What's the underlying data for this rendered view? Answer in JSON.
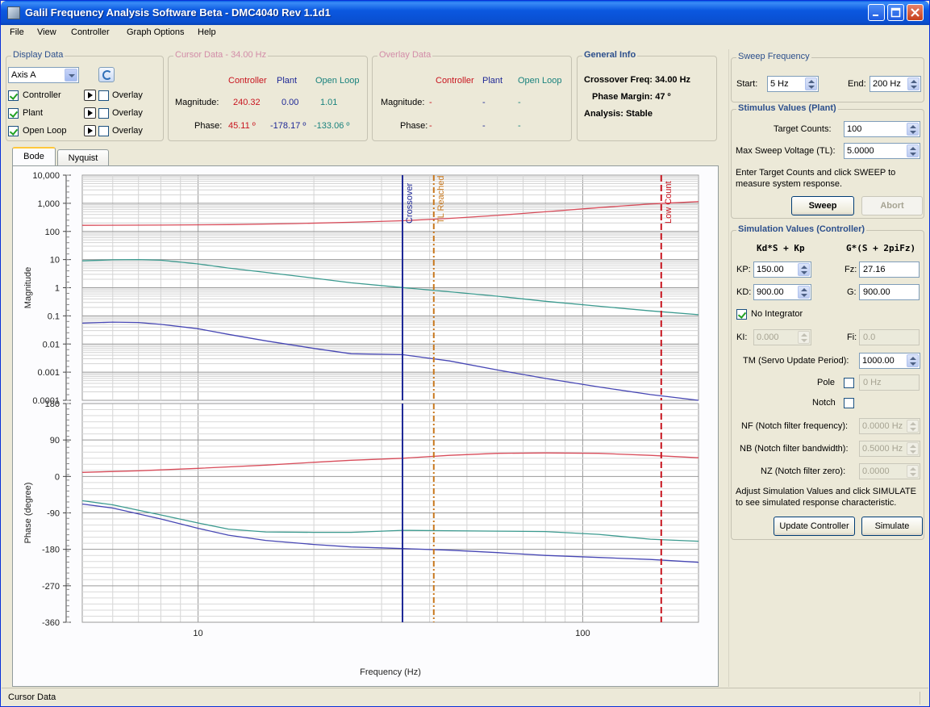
{
  "window": {
    "title": "Galil Frequency Analysis Software Beta - DMC4040 Rev 1.1d1"
  },
  "menu": [
    "File",
    "View",
    "Controller",
    "Graph Options",
    "Help"
  ],
  "display_data": {
    "title": "Display Data",
    "axis": "Axis A",
    "rows": [
      {
        "label": "Controller",
        "checked": true,
        "overlay": "Overlay",
        "color": "#c8141e"
      },
      {
        "label": "Plant",
        "checked": true,
        "overlay": "Overlay",
        "color": "#1e2896"
      },
      {
        "label": "Open Loop",
        "checked": true,
        "overlay": "Overlay",
        "color": "#19827d"
      }
    ]
  },
  "cursor_data": {
    "title": "Cursor Data - 34.00 Hz",
    "headers": [
      "Controller",
      "Plant",
      "Open Loop"
    ],
    "magnitude_label": "Magnitude:",
    "phase_label": "Phase:",
    "magnitude": [
      "240.32",
      "0.00",
      "1.01"
    ],
    "phase": [
      "45.11 º",
      "-178.17 º",
      "-133.06 º"
    ]
  },
  "overlay_data": {
    "title": "Overlay Data",
    "headers": [
      "Controller",
      "Plant",
      "Open Loop"
    ],
    "magnitude_label": "Magnitude:",
    "phase_label": "Phase:",
    "magnitude": [
      "-",
      "-",
      "-"
    ],
    "phase": [
      "-",
      "-",
      "-"
    ]
  },
  "general_info": {
    "title": "General Info",
    "crossover": "Crossover Freq: 34.00 Hz",
    "phase_margin": "Phase Margin: 47 º",
    "analysis": "Analysis: Stable"
  },
  "sweep_frequency": {
    "title": "Sweep Frequency",
    "start_label": "Start:",
    "start": "5 Hz",
    "end_label": "End:",
    "end": "200 Hz"
  },
  "stimulus": {
    "title": "Stimulus Values (Plant)",
    "target_label": "Target Counts:",
    "target": "100",
    "voltage_label": "Max Sweep Voltage (TL):",
    "voltage": "5.0000",
    "hint": "Enter Target Counts and click SWEEP to measure system response.",
    "sweep": "Sweep",
    "abort": "Abort"
  },
  "simulation": {
    "title": "Simulation Values (Controller)",
    "formula_left": "Kd*S + Kp",
    "formula_right": "G*(S + 2piFz)",
    "kp_label": "KP:",
    "kp": "150.00",
    "kd_label": "KD:",
    "kd": "900.00",
    "fz_label": "Fz:",
    "fz": "27.16",
    "g_label": "G:",
    "g": "900.00",
    "no_integrator": "No Integrator",
    "ki_label": "KI:",
    "ki": "0.000",
    "fi_label": "Fi:",
    "fi": "0.0",
    "tm_label": "TM (Servo Update Period):",
    "tm": "1000.00",
    "pole_label": "Pole",
    "pole": "0 Hz",
    "notch_label": "Notch",
    "nf_label": "NF (Notch filter frequency):",
    "nf": "0.0000 Hz",
    "nb_label": "NB (Notch filter bandwidth):",
    "nb": "0.5000 Hz",
    "nz_label": "NZ (Notch filter zero):",
    "nz": "0.0000",
    "hint": "Adjust Simulation Values and click SIMULATE to see simulated response characteristic.",
    "update": "Update Controller",
    "simulate": "Simulate"
  },
  "tabs": [
    "Bode",
    "Nyquist"
  ],
  "status": "Cursor Data",
  "chart_data": [
    {
      "type": "line",
      "title": "",
      "xlabel": "",
      "ylabel": "Magnitude",
      "xscale": "log",
      "yscale": "log",
      "xlim": [
        5,
        200
      ],
      "ylim": [
        0.0001,
        10000
      ],
      "y_ticks": [
        "10,000",
        "1,000",
        "100",
        "10",
        "1",
        "0.1",
        "0.01",
        "0.001",
        "0.0001"
      ],
      "grid": true,
      "markers": [
        {
          "label": "Crossover",
          "x": 34,
          "color": "#1e2896"
        },
        {
          "label": "TL Reached",
          "x": 41,
          "color": "#c8781e"
        },
        {
          "label": "Low Count",
          "x": 160,
          "color": "#c8141e"
        }
      ],
      "series": [
        {
          "name": "Controller",
          "color": "#d84c5a",
          "x": [
            5,
            8,
            12,
            18,
            25,
            34,
            45,
            60,
            80,
            110,
            150,
            200
          ],
          "values": [
            165,
            168,
            175,
            190,
            212,
            240,
            290,
            370,
            500,
            700,
            950,
            1150
          ]
        },
        {
          "name": "Open Loop",
          "color": "#3b9a8f",
          "x": [
            5,
            6,
            7,
            8,
            10,
            12,
            15,
            20,
            25,
            34,
            45,
            60,
            80,
            110,
            150,
            200
          ],
          "values": [
            9,
            9.8,
            10,
            9.5,
            7,
            5,
            3.5,
            2.2,
            1.5,
            1.01,
            0.72,
            0.5,
            0.33,
            0.22,
            0.15,
            0.11
          ]
        },
        {
          "name": "Plant",
          "color": "#4646b4",
          "x": [
            5,
            6,
            7,
            8,
            10,
            12,
            15,
            20,
            25,
            34,
            45,
            60,
            80,
            110,
            150,
            200
          ],
          "values": [
            0.055,
            0.06,
            0.058,
            0.05,
            0.035,
            0.022,
            0.013,
            0.007,
            0.0045,
            0.0042,
            0.0025,
            0.0012,
            0.0006,
            0.0003,
            0.00016,
            0.0001
          ]
        }
      ]
    },
    {
      "type": "line",
      "title": "",
      "xlabel": "Frequency (Hz)",
      "ylabel": "Phase (degree)",
      "xscale": "log",
      "xlim": [
        5,
        200
      ],
      "ylim": [
        -360,
        180
      ],
      "x_ticks": [
        "10",
        "100"
      ],
      "y_ticks": [
        "180",
        "90",
        "0",
        "-90",
        "-180",
        "-270",
        "-360"
      ],
      "grid": true,
      "markers": [
        {
          "label": "",
          "x": 34,
          "color": "#1e2896"
        },
        {
          "label": "",
          "x": 41,
          "color": "#c8781e"
        },
        {
          "label": "",
          "x": 160,
          "color": "#c8141e"
        }
      ],
      "series": [
        {
          "name": "Controller",
          "color": "#d84c5a",
          "x": [
            5,
            7,
            10,
            15,
            20,
            25,
            34,
            45,
            60,
            80,
            110,
            150,
            200
          ],
          "values": [
            10,
            14,
            20,
            28,
            35,
            40,
            45,
            52,
            57,
            58,
            57,
            52,
            46
          ]
        },
        {
          "name": "Open Loop",
          "color": "#3b9a8f",
          "x": [
            5,
            6,
            8,
            10,
            12,
            15,
            20,
            25,
            34,
            45,
            60,
            80,
            110,
            150,
            200
          ],
          "values": [
            -60,
            -70,
            -95,
            -115,
            -130,
            -137,
            -138,
            -138,
            -133,
            -134,
            -135,
            -136,
            -143,
            -155,
            -160
          ]
        },
        {
          "name": "Plant",
          "color": "#4646b4",
          "x": [
            5,
            6,
            8,
            10,
            12,
            15,
            20,
            25,
            34,
            45,
            60,
            80,
            110,
            150,
            200
          ],
          "values": [
            -68,
            -78,
            -105,
            -128,
            -145,
            -158,
            -168,
            -174,
            -178,
            -182,
            -188,
            -195,
            -200,
            -205,
            -212
          ]
        }
      ]
    }
  ]
}
